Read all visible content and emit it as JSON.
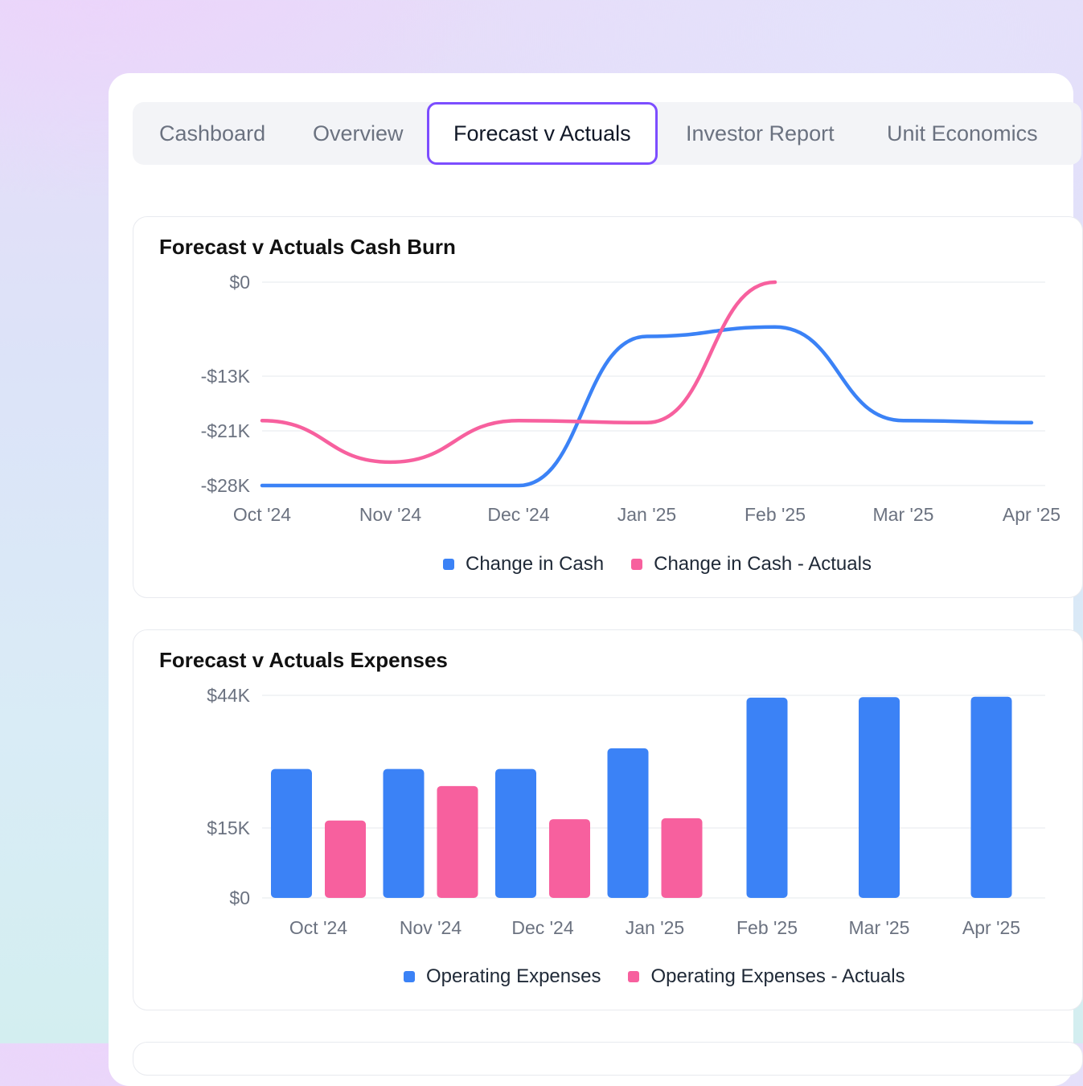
{
  "tabs": [
    {
      "label": "Cashboard",
      "active": false
    },
    {
      "label": "Overview",
      "active": false
    },
    {
      "label": "Forecast v Actuals",
      "active": true
    },
    {
      "label": "Investor Report",
      "active": false
    },
    {
      "label": "Unit Economics",
      "active": false
    }
  ],
  "colors": {
    "forecast": "#3b82f6",
    "actuals": "#f7609e",
    "accent": "#7c4dff"
  },
  "chart_data": [
    {
      "type": "line",
      "title": "Forecast v Actuals Cash Burn",
      "x": [
        "Oct '24",
        "Nov '24",
        "Dec '24",
        "Jan '25",
        "Feb '25",
        "Mar '25",
        "Apr '25"
      ],
      "y_ticks": [
        {
          "value": 0,
          "label": "$0"
        },
        {
          "value": -13000,
          "label": "-$13K"
        },
        {
          "value": -21000,
          "label": "-$21K"
        },
        {
          "value": -28000,
          "label": "-$28K"
        }
      ],
      "ylim": [
        -28000,
        0
      ],
      "series": [
        {
          "name": "Change in Cash",
          "color": "#3b82f6",
          "values": [
            -28000,
            -28000,
            -28000,
            -7500,
            -6200,
            -19500,
            -19800
          ]
        },
        {
          "name": "Change in Cash - Actuals",
          "color": "#f7609e",
          "values": [
            -19500,
            -25000,
            -19500,
            -19800,
            0,
            null,
            null
          ]
        }
      ],
      "grid": true,
      "legend": "bottom-center"
    },
    {
      "type": "bar",
      "title": "Forecast v Actuals Expenses",
      "categories": [
        "Oct '24",
        "Nov '24",
        "Dec '24",
        "Jan '25",
        "Feb '25",
        "Mar '25",
        "Apr '25"
      ],
      "y_ticks": [
        {
          "value": 0,
          "label": "$0"
        },
        {
          "value": 15000,
          "label": "$15K"
        },
        {
          "value": 44000,
          "label": "$44K"
        }
      ],
      "ylim": [
        0,
        44000
      ],
      "series": [
        {
          "name": "Operating Expenses",
          "color": "#3b82f6",
          "values": [
            28000,
            28000,
            28000,
            32500,
            43500,
            43600,
            43700
          ]
        },
        {
          "name": "Operating Expenses - Actuals",
          "color": "#f7609e",
          "values": [
            16800,
            24300,
            17100,
            17300,
            null,
            null,
            null
          ]
        }
      ],
      "grid": true,
      "legend": "bottom-center"
    }
  ]
}
